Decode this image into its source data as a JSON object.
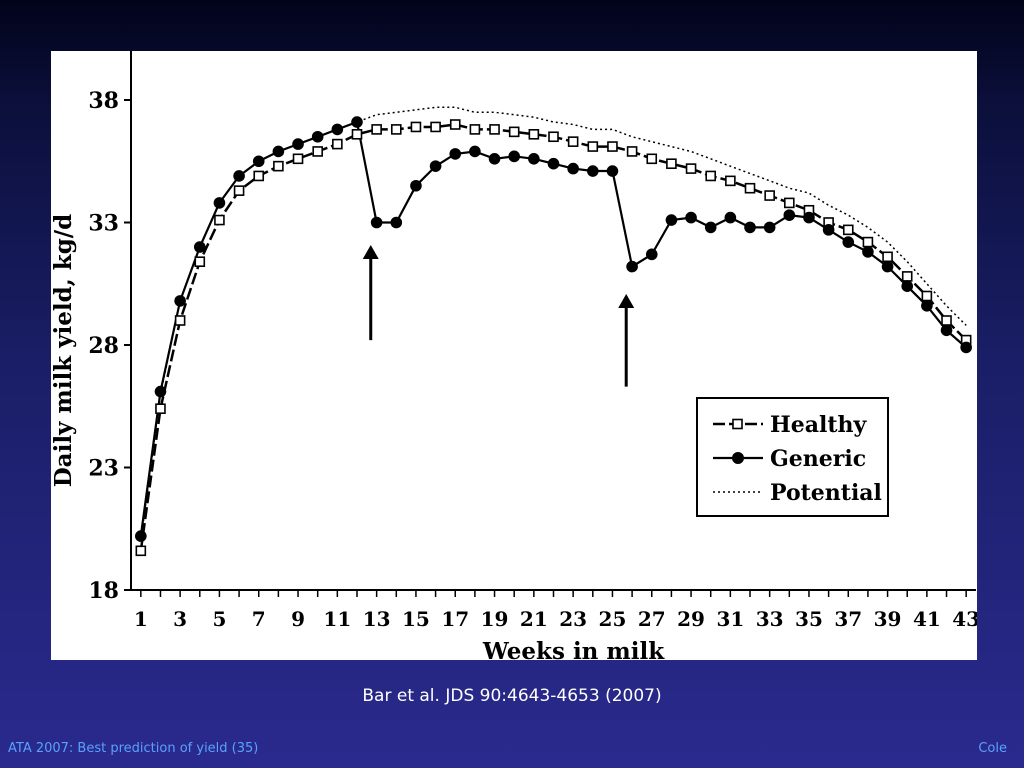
{
  "slide": {
    "caption": "Bar et al. JDS 90:4643-4653 (2007)",
    "footer_left": "ATA 2007: Best prediction of yield (35)",
    "footer_right": "Cole"
  },
  "chart_data": {
    "type": "line",
    "xlabel": "Weeks in milk",
    "ylabel": "Daily milk yield, kg/d",
    "xlim": [
      0.5,
      43.5
    ],
    "ylim": [
      18,
      40
    ],
    "x_ticks": [
      1,
      3,
      5,
      7,
      9,
      11,
      13,
      15,
      17,
      19,
      21,
      23,
      25,
      27,
      29,
      31,
      33,
      35,
      37,
      39,
      41,
      43
    ],
    "y_ticks": [
      18,
      23,
      28,
      33,
      38
    ],
    "legend_position": "lower-right",
    "grid": false,
    "series": [
      {
        "name": "Healthy",
        "marker": "open-square",
        "line": "long-dash",
        "x": [
          1,
          2,
          3,
          4,
          5,
          6,
          7,
          8,
          9,
          10,
          11,
          12,
          13,
          14,
          15,
          16,
          17,
          18,
          19,
          20,
          21,
          22,
          23,
          24,
          25,
          26,
          27,
          28,
          29,
          30,
          31,
          32,
          33,
          34,
          35,
          36,
          37,
          38,
          39,
          40,
          41,
          42,
          43
        ],
        "y": [
          19.6,
          25.4,
          29.0,
          31.4,
          33.1,
          34.3,
          34.9,
          35.3,
          35.6,
          35.9,
          36.2,
          36.6,
          36.8,
          36.8,
          36.9,
          36.9,
          37.0,
          36.8,
          36.8,
          36.7,
          36.6,
          36.5,
          36.3,
          36.1,
          36.1,
          35.9,
          35.6,
          35.4,
          35.2,
          34.9,
          34.7,
          34.4,
          34.1,
          33.8,
          33.5,
          33.0,
          32.7,
          32.2,
          31.6,
          30.8,
          30.0,
          29.0,
          28.2
        ]
      },
      {
        "name": "Generic",
        "marker": "filled-circle",
        "line": "solid",
        "x": [
          1,
          2,
          3,
          4,
          5,
          6,
          7,
          8,
          9,
          10,
          11,
          12,
          13,
          14,
          15,
          16,
          17,
          18,
          19,
          20,
          21,
          22,
          23,
          24,
          25,
          26,
          27,
          28,
          29,
          30,
          31,
          32,
          33,
          34,
          35,
          36,
          37,
          38,
          39,
          40,
          41,
          42,
          43
        ],
        "y": [
          20.2,
          26.1,
          29.8,
          32.0,
          33.8,
          34.9,
          35.5,
          35.9,
          36.2,
          36.5,
          36.8,
          37.1,
          33.0,
          33.0,
          34.5,
          35.3,
          35.8,
          35.9,
          35.6,
          35.7,
          35.6,
          35.4,
          35.2,
          35.1,
          35.1,
          31.2,
          31.7,
          33.1,
          33.2,
          32.8,
          33.2,
          32.8,
          32.8,
          33.3,
          33.2,
          32.7,
          32.2,
          31.8,
          31.2,
          30.4,
          29.6,
          28.6,
          27.9
        ]
      },
      {
        "name": "Potential",
        "marker": "none",
        "line": "dotted",
        "x": [
          1,
          2,
          3,
          4,
          5,
          6,
          7,
          8,
          9,
          10,
          11,
          12,
          13,
          14,
          15,
          16,
          17,
          18,
          19,
          20,
          21,
          22,
          23,
          24,
          25,
          26,
          27,
          28,
          29,
          30,
          31,
          32,
          33,
          34,
          35,
          36,
          37,
          38,
          39,
          40,
          41,
          42,
          43
        ],
        "y": [
          20.0,
          26.0,
          29.8,
          32.0,
          33.8,
          34.9,
          35.5,
          35.9,
          36.2,
          36.5,
          36.8,
          37.1,
          37.4,
          37.5,
          37.6,
          37.7,
          37.7,
          37.5,
          37.5,
          37.4,
          37.3,
          37.1,
          37.0,
          36.8,
          36.8,
          36.5,
          36.3,
          36.1,
          35.9,
          35.6,
          35.3,
          35.0,
          34.7,
          34.4,
          34.2,
          33.7,
          33.3,
          32.8,
          32.2,
          31.4,
          30.5,
          29.6,
          28.8
        ]
      }
    ],
    "annotations": [
      {
        "type": "arrow",
        "x": 12.7,
        "y_from": 28.2,
        "y_to": 32.0
      },
      {
        "type": "arrow",
        "x": 25.7,
        "y_from": 26.3,
        "y_to": 30.0
      }
    ]
  }
}
